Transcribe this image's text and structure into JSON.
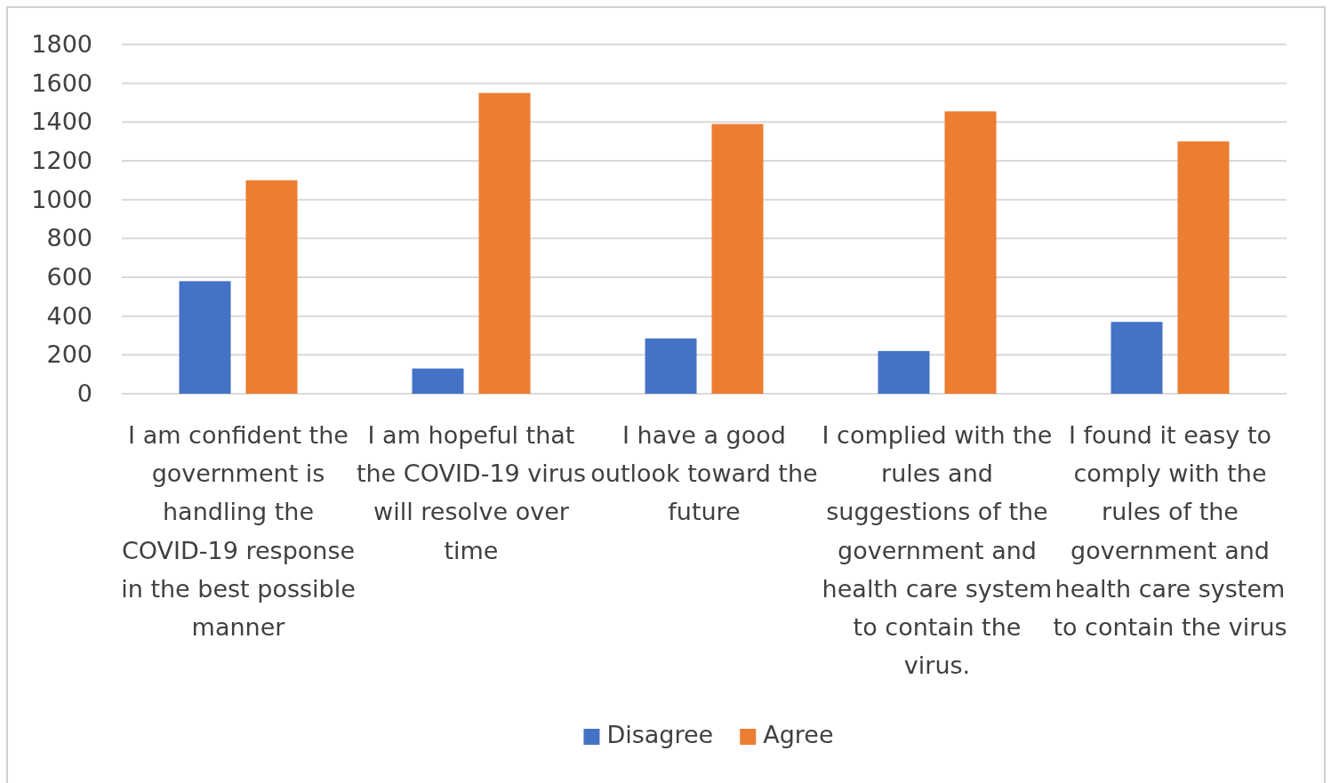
{
  "chart_data": {
    "type": "bar",
    "categories": [
      "I am confident the government is handling the COVID-19 response in the best possible manner",
      "I am hopeful that the COVID-19 virus will resolve over time",
      "I have a good outlook toward the future",
      "I complied with the rules and suggestions of the government and health care system to contain the virus.",
      "I found it easy to comply with the rules of the government and health care system to contain the virus"
    ],
    "series": [
      {
        "name": "Disagree",
        "color": "#4472c4",
        "values": [
          580,
          130,
          285,
          220,
          370
        ]
      },
      {
        "name": "Agree",
        "color": "#ed7d31",
        "values": [
          1100,
          1550,
          1390,
          1455,
          1300
        ]
      }
    ],
    "ylim": [
      0,
      1800
    ],
    "yticks": [
      0,
      200,
      400,
      600,
      800,
      1000,
      1200,
      1400,
      1600,
      1800
    ],
    "grid": "y",
    "legend": "bottom"
  }
}
